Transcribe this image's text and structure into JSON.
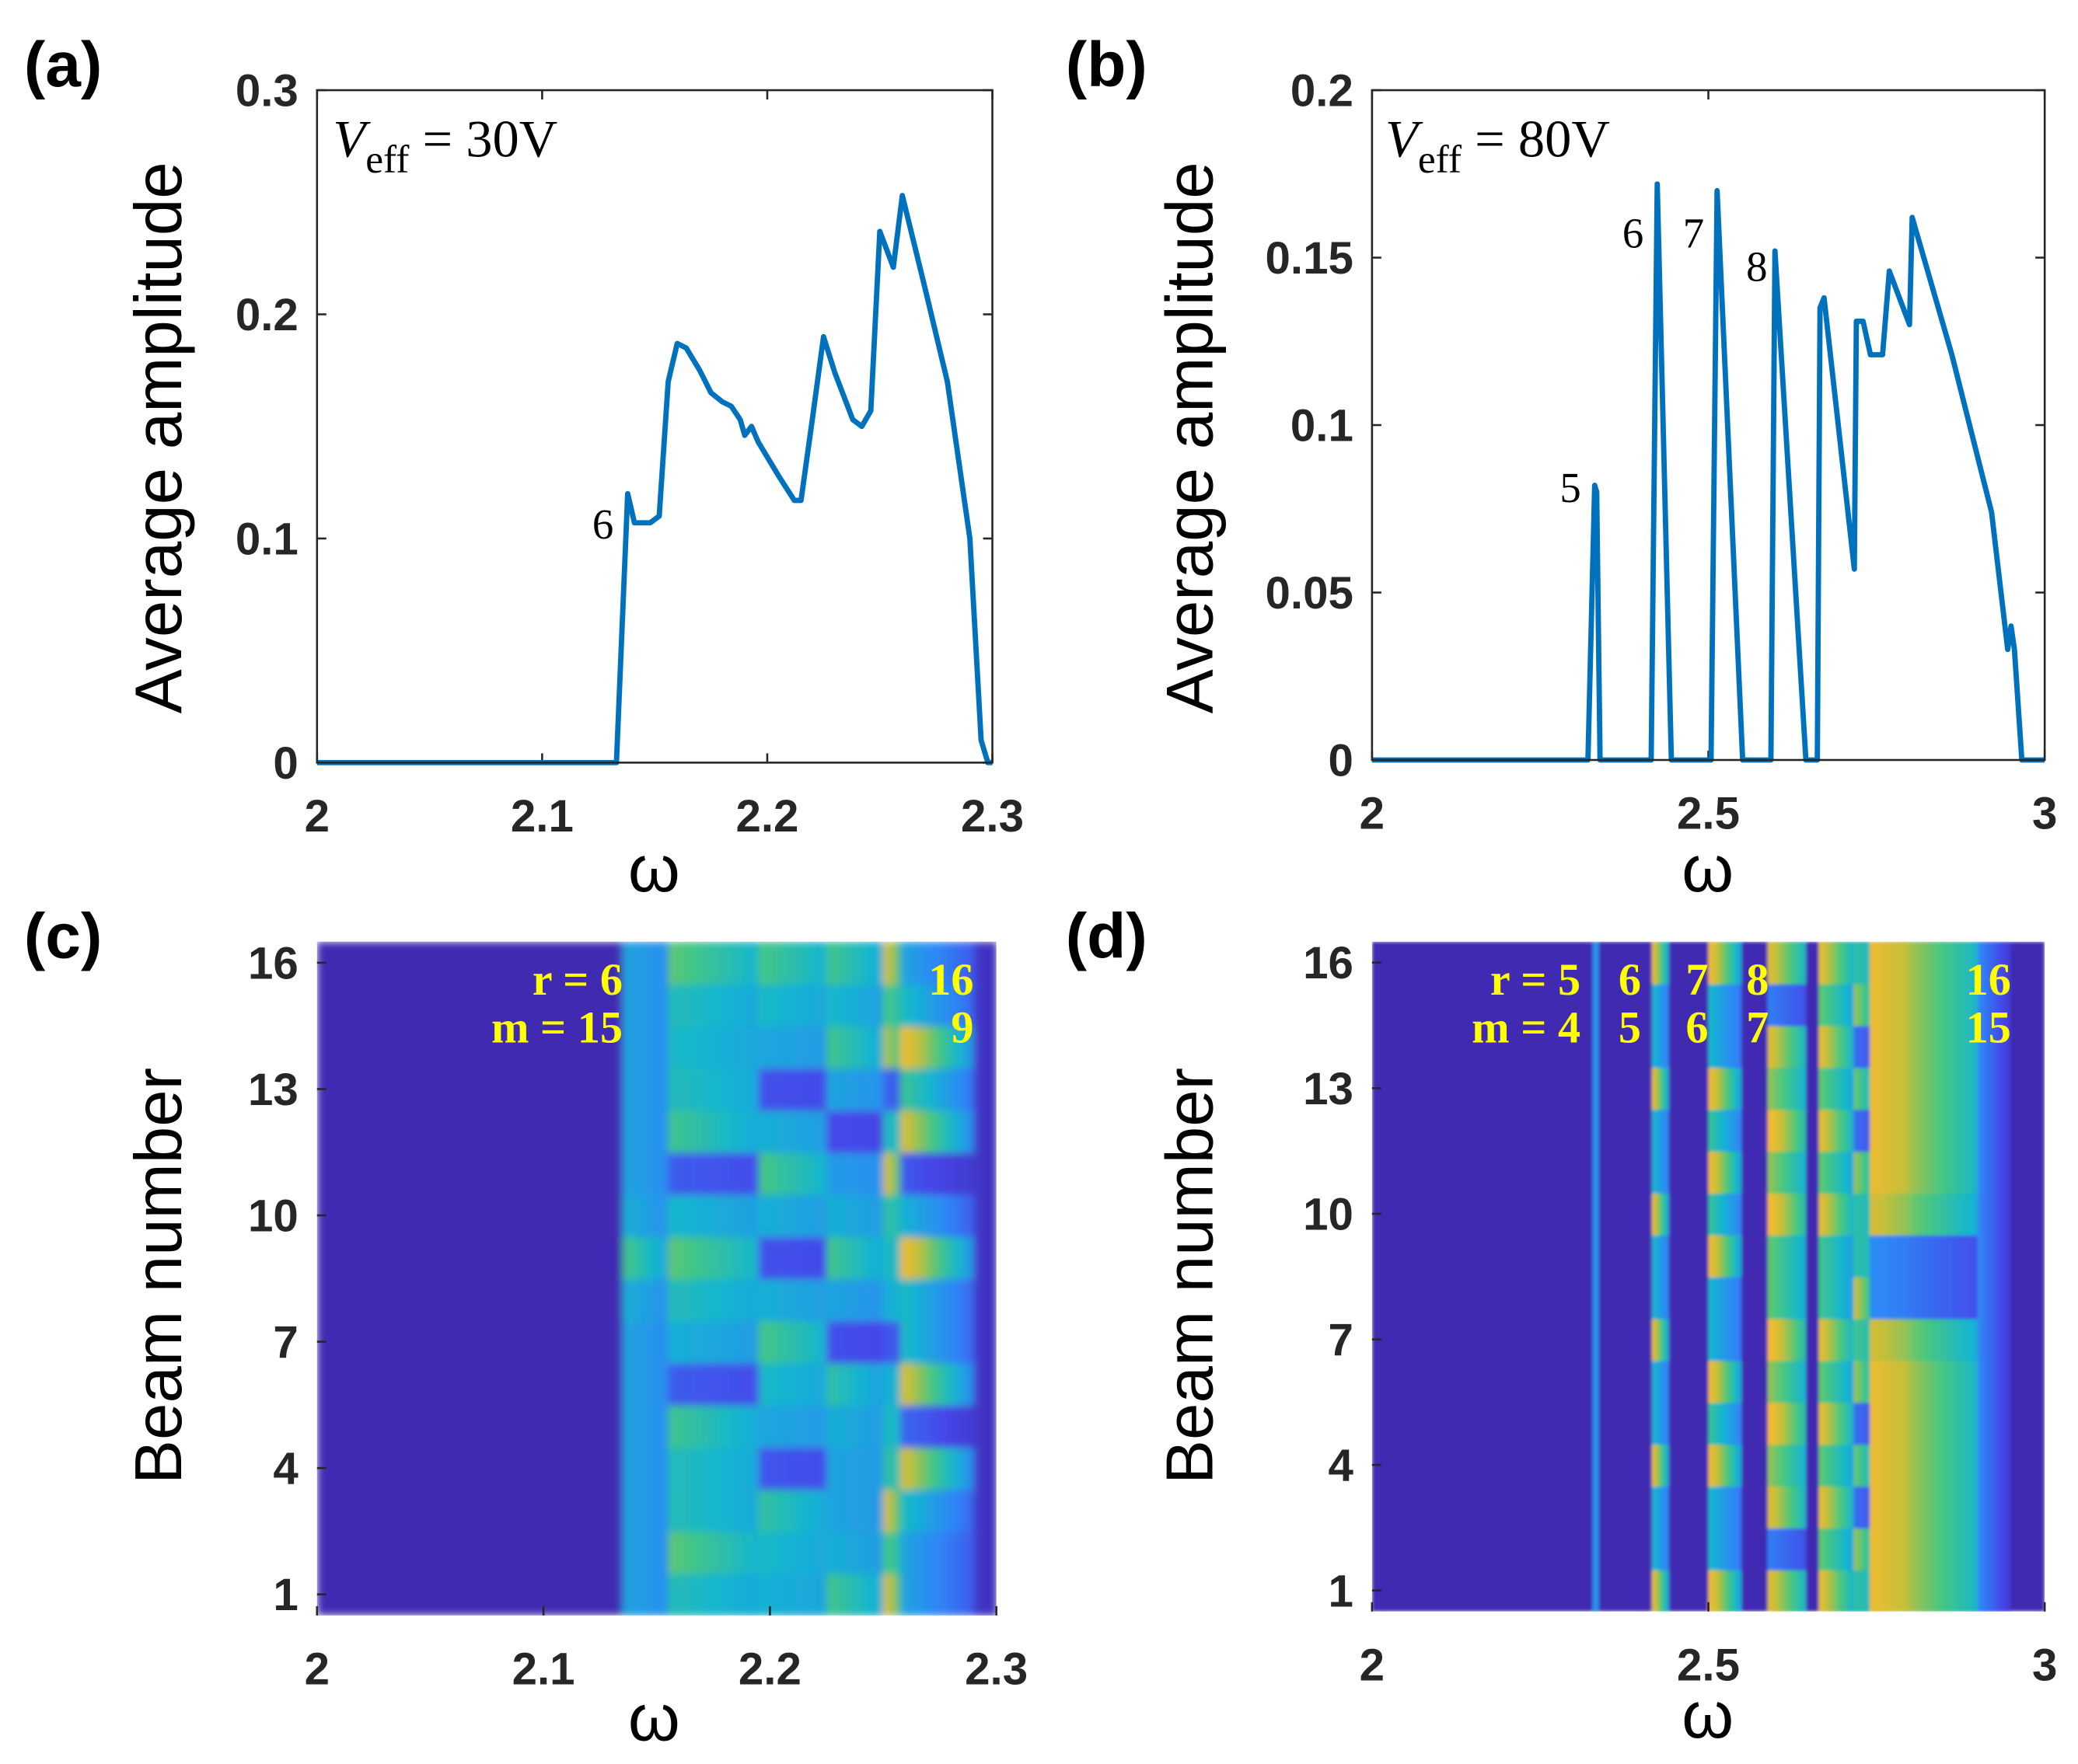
{
  "chart_data": [
    {
      "id": "a",
      "type": "line",
      "panel_label": "(a)",
      "annotation": {
        "V": "V",
        "sub": "eff",
        "rest": " = 30V"
      },
      "xlabel": "ω",
      "ylabel": "Average amplitude",
      "xlim": [
        2,
        2.3
      ],
      "ylim": [
        0,
        0.3
      ],
      "xticks": [
        2,
        2.1,
        2.2,
        2.3
      ],
      "xtick_labels": [
        "2",
        "2.1",
        "2.2",
        "2.3"
      ],
      "yticks": [
        0,
        0.1,
        0.2,
        0.3
      ],
      "ytick_labels": [
        "0",
        "0.1",
        "0.2",
        "0.3"
      ],
      "color": "#0072bd",
      "curve_labels": [
        {
          "text": "6",
          "x": 2.127,
          "y": 0.1
        }
      ],
      "x": [
        2,
        2.133,
        2.138,
        2.141,
        2.148,
        2.152,
        2.156,
        2.16,
        2.164,
        2.17,
        2.175,
        2.18,
        2.184,
        2.188,
        2.19,
        2.193,
        2.196,
        2.205,
        2.212,
        2.215,
        2.22,
        2.225,
        2.23,
        2.238,
        2.242,
        2.246,
        2.25,
        2.256,
        2.26,
        2.27,
        2.28,
        2.29,
        2.295,
        2.298,
        2.3
      ],
      "y": [
        0,
        0,
        0.12,
        0.107,
        0.107,
        0.11,
        0.17,
        0.187,
        0.185,
        0.175,
        0.165,
        0.161,
        0.159,
        0.153,
        0.146,
        0.15,
        0.143,
        0.128,
        0.117,
        0.117,
        0.153,
        0.19,
        0.174,
        0.153,
        0.15,
        0.157,
        0.237,
        0.221,
        0.253,
        0.212,
        0.17,
        0.1,
        0.01,
        0,
        0
      ]
    },
    {
      "id": "b",
      "type": "line",
      "panel_label": "(b)",
      "annotation": {
        "V": "V",
        "sub": "eff",
        "rest": " = 80V"
      },
      "xlabel": "ω",
      "ylabel": "Average amplitude",
      "xlim": [
        2,
        3
      ],
      "ylim": [
        0,
        0.2
      ],
      "xticks": [
        2,
        2.5,
        3
      ],
      "xtick_labels": [
        "2",
        "2.5",
        "3"
      ],
      "yticks": [
        0,
        0.05,
        0.1,
        0.15,
        0.2
      ],
      "ytick_labels": [
        "0",
        "0.05",
        "0.1",
        "0.15",
        "0.2"
      ],
      "color": "#0072bd",
      "curve_labels": [
        {
          "text": "5",
          "x": 2.295,
          "y": 0.077
        },
        {
          "text": "6",
          "x": 2.388,
          "y": 0.153
        },
        {
          "text": "7",
          "x": 2.478,
          "y": 0.153
        },
        {
          "text": "8",
          "x": 2.572,
          "y": 0.143
        }
      ],
      "x": [
        2,
        2.321,
        2.331,
        2.334,
        2.339,
        2.415,
        2.424,
        2.445,
        2.504,
        2.513,
        2.551,
        2.593,
        2.599,
        2.645,
        2.662,
        2.666,
        2.672,
        2.717,
        2.72,
        2.73,
        2.741,
        2.759,
        2.769,
        2.799,
        2.803,
        2.862,
        2.921,
        2.945,
        2.95,
        2.955,
        2.966,
        3
      ],
      "y": [
        0,
        0,
        0.082,
        0.08,
        0,
        0,
        0.172,
        0,
        0,
        0.17,
        0,
        0,
        0.152,
        0,
        0,
        0.135,
        0.138,
        0.057,
        0.131,
        0.131,
        0.121,
        0.121,
        0.146,
        0.13,
        0.162,
        0.121,
        0.074,
        0.033,
        0.04,
        0.033,
        0,
        0
      ]
    },
    {
      "id": "c",
      "type": "heatmap",
      "panel_label": "(c)",
      "xlabel": "ω",
      "ylabel": "Beam number",
      "xlim": [
        2,
        2.3
      ],
      "ylim": [
        0.5,
        16.5
      ],
      "xticks": [
        2,
        2.1,
        2.2,
        2.3
      ],
      "xtick_labels": [
        "2",
        "2.1",
        "2.2",
        "2.3"
      ],
      "yticks": [
        1,
        4,
        7,
        10,
        13,
        16
      ],
      "ytick_labels": [
        "1",
        "4",
        "7",
        "10",
        "13",
        "16"
      ],
      "mode_labels": [
        {
          "r": "r = 6",
          "m": "m = 15",
          "x": 2.135
        },
        {
          "r": "16",
          "m": "9",
          "x": 2.29
        }
      ],
      "bands": [
        {
          "w": [
            2.134,
            2.156
          ],
          "base": 0.38,
          "fade": 0.2,
          "peaks": [
            9
          ],
          "amp": 0.2,
          "dips": []
        },
        {
          "w": [
            2.156,
            2.195
          ],
          "base": 0.45,
          "fade": 0.15,
          "peaks": [
            2,
            5,
            9,
            12,
            16
          ],
          "amp": 0.15,
          "dips": [
            6,
            11
          ]
        },
        {
          "w": [
            2.195,
            2.225
          ],
          "base": 0.42,
          "fade": 0.1,
          "peaks": [
            3,
            7,
            11,
            16
          ],
          "amp": 0.15,
          "dips": [
            4,
            9,
            13
          ]
        },
        {
          "w": [
            2.225,
            2.25
          ],
          "base": 0.38,
          "fade": 0.1,
          "peaks": [
            1,
            6,
            9,
            14,
            16
          ],
          "amp": 0.18,
          "dips": [
            7,
            12
          ]
        },
        {
          "w": [
            2.25,
            2.258
          ],
          "base": 0.45,
          "fade": 0,
          "peaks": [
            1,
            3,
            11,
            14,
            16
          ],
          "amp": 0.35,
          "dips": [
            7,
            13
          ]
        },
        {
          "w": [
            2.258,
            2.29
          ],
          "base": 0.38,
          "fade": 0.5,
          "peaks": [
            4,
            6,
            9,
            12,
            14
          ],
          "amp": 0.45,
          "dips": [
            5,
            11
          ]
        },
        {
          "w": [
            2.29,
            2.3
          ],
          "base": 0.08,
          "fade": 0.6,
          "peaks": [],
          "amp": 0,
          "dips": []
        }
      ]
    },
    {
      "id": "d",
      "type": "heatmap",
      "panel_label": "(d)",
      "xlabel": "ω",
      "ylabel": "Beam number",
      "xlim": [
        2,
        3
      ],
      "ylim": [
        0.5,
        16.5
      ],
      "xticks": [
        2,
        2.5,
        3
      ],
      "xtick_labels": [
        "2",
        "2.5",
        "3"
      ],
      "yticks": [
        1,
        4,
        7,
        10,
        13,
        16
      ],
      "ytick_labels": [
        "1",
        "4",
        "7",
        "10",
        "13",
        "16"
      ],
      "mode_labels": [
        {
          "r": "r = 5",
          "m": "m = 4",
          "x": 2.31
        },
        {
          "r": "6",
          "m": "5",
          "x": 2.4
        },
        {
          "r": "7",
          "m": "6",
          "x": 2.5
        },
        {
          "r": "8",
          "m": "7",
          "x": 2.59
        },
        {
          "r": "16",
          "m": "15",
          "x": 2.95
        }
      ],
      "bands": [
        {
          "w": [
            2.33,
            2.336
          ],
          "base": 0.32,
          "fade": 0,
          "peaks": [],
          "amp": 0,
          "dips": []
        },
        {
          "w": [
            2.415,
            2.44
          ],
          "base": 0.35,
          "fade": 0.3,
          "peaks": [
            1,
            4,
            7,
            10,
            13,
            16
          ],
          "amp": 0.5,
          "dips": []
        },
        {
          "w": [
            2.5,
            2.55
          ],
          "base": 0.35,
          "fade": 0.4,
          "peaks": [
            1,
            4,
            6,
            9,
            11,
            13,
            16
          ],
          "amp": 0.5,
          "dips": []
        },
        {
          "w": [
            2.59,
            2.645
          ],
          "base": 0.55,
          "fade": 0.3,
          "peaks": [
            1,
            3,
            5,
            7,
            10,
            12,
            14,
            16
          ],
          "amp": 0.3,
          "dips": [
            2,
            15
          ]
        },
        {
          "w": [
            2.665,
            2.715
          ],
          "base": 0.5,
          "fade": 0.3,
          "peaks": [
            1,
            3,
            5,
            7,
            10,
            12,
            14,
            16
          ],
          "amp": 0.3,
          "dips": []
        },
        {
          "w": [
            2.715,
            2.74
          ],
          "base": 0.45,
          "fade": 0,
          "peaks": [
            2,
            4,
            6,
            8,
            11,
            13,
            15
          ],
          "amp": 0.3,
          "dips": [
            3,
            5,
            12,
            14
          ]
        },
        {
          "w": [
            2.74,
            2.8
          ],
          "base": 0.82,
          "fade": 0.15,
          "peaks": [],
          "amp": 0,
          "dips": [
            8,
            9
          ]
        },
        {
          "w": [
            2.8,
            2.9
          ],
          "base": 0.68,
          "fade": 0.35,
          "peaks": [],
          "amp": 0,
          "dips": [
            8,
            9
          ]
        },
        {
          "w": [
            2.9,
            2.95
          ],
          "base": 0.3,
          "fade": 0.7,
          "peaks": [],
          "amp": 0,
          "dips": []
        }
      ]
    }
  ],
  "colormap": [
    "#3e26a8",
    "#4546e8",
    "#2e87f7",
    "#14b5d0",
    "#48c780",
    "#c5bf3a",
    "#fdbb2e",
    "#f9fb0e"
  ]
}
